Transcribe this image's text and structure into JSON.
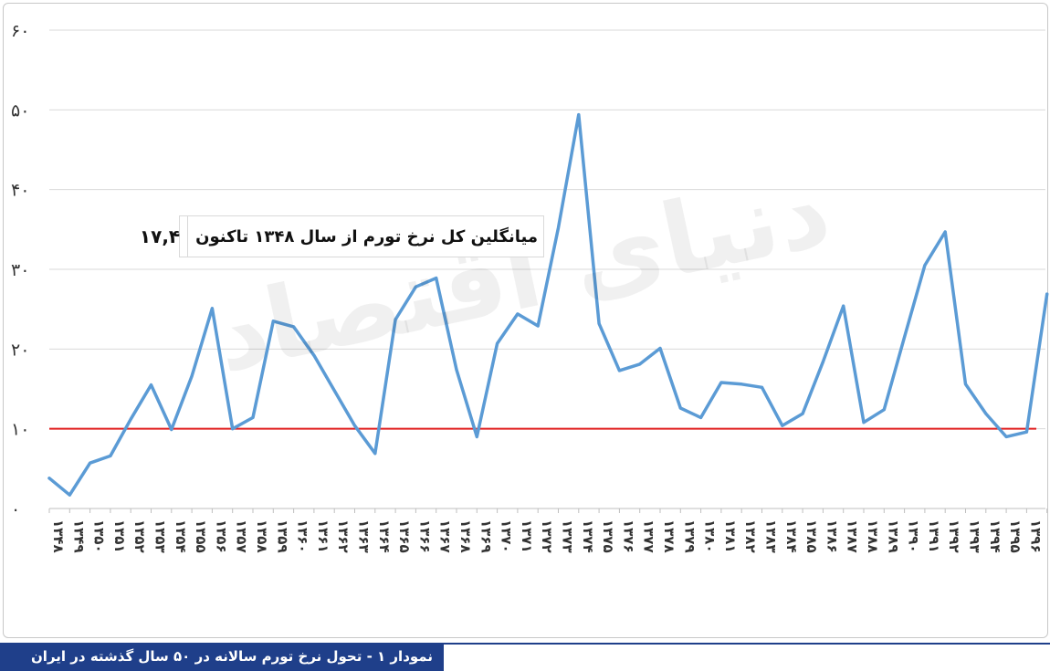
{
  "chart_data": {
    "type": "line",
    "title": "",
    "xlabel": "",
    "ylabel": "",
    "ylim": [
      0,
      60
    ],
    "yticks": [
      0,
      10,
      20,
      30,
      40,
      50,
      60
    ],
    "ytick_labels": [
      "۰",
      "۱۰",
      "۲۰",
      "۳۰",
      "۴۰",
      "۵۰",
      "۶۰"
    ],
    "grid": true,
    "categories": [
      "۱۳۴۸",
      "۱۳۴۹",
      "۱۳۵۰",
      "۱۳۵۱",
      "۱۳۵۲",
      "۱۳۵۳",
      "۱۳۵۴",
      "۱۳۵۵",
      "۱۳۵۶",
      "۱۳۵۷",
      "۱۳۵۸",
      "۱۳۵۹",
      "۱۳۶۰",
      "۱۳۶۱",
      "۱۳۶۲",
      "۱۳۶۳",
      "۱۳۶۴",
      "۱۳۶۵",
      "۱۳۶۶",
      "۱۳۶۷",
      "۱۳۶۸",
      "۱۳۶۹",
      "۱۳۷۰",
      "۱۳۷۱",
      "۱۳۷۲",
      "۱۳۷۳",
      "۱۳۷۴",
      "۱۳۷۵",
      "۱۳۷۶",
      "۱۳۷۷",
      "۱۳۷۸",
      "۱۳۷۹",
      "۱۳۸۰",
      "۱۳۸۱",
      "۱۳۸۲",
      "۱۳۸۳",
      "۱۳۸۴",
      "۱۳۸۵",
      "۱۳۸۶",
      "۱۳۸۷",
      "۱۳۸۸",
      "۱۳۸۹",
      "۱۳۹۰",
      "۱۳۹۱",
      "۱۳۹۲",
      "۱۳۹۳",
      "۱۳۹۴",
      "۱۳۹۵",
      "۱۳۹۶",
      "۱۳۹۷"
    ],
    "series": [
      {
        "name": "",
        "color": "#5b9bd5",
        "values": [
          3.8,
          1.7,
          5.7,
          6.6,
          11.2,
          15.5,
          9.9,
          16.6,
          25.1,
          10.0,
          11.4,
          23.5,
          22.8,
          19.2,
          14.8,
          10.4,
          6.9,
          23.7,
          27.8,
          28.9,
          17.4,
          9.0,
          20.7,
          24.4,
          22.9,
          35.2,
          49.4,
          23.2,
          17.3,
          18.1,
          20.1,
          12.6,
          11.4,
          15.8,
          15.6,
          15.2,
          10.4,
          11.9,
          18.4,
          25.4,
          10.8,
          12.4,
          21.5,
          30.5,
          34.7,
          15.6,
          11.9,
          9.0,
          9.6,
          26.9
        ]
      }
    ],
    "reference_line": {
      "value": 10,
      "color": "#e01f1f"
    },
    "annotation": {
      "text": "میانگلین کل نرخ تورم از سال ۱۳۴۸ تاکنون",
      "value": "۱۷,۴"
    }
  },
  "caption": {
    "text": "نمودار ۱ - تحول نرخ تورم سالانه در ۵۰ سال گذشته در ایران",
    "bg_color": "#1f3f8a"
  },
  "watermark": {
    "text": "دنیای اقتصاد"
  }
}
